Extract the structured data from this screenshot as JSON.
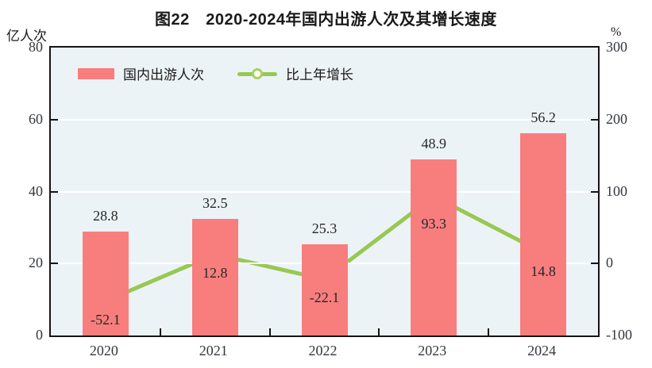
{
  "title": "图22　2020-2024年国内出游人次及其增长速度",
  "left_axis_unit": "亿人次",
  "right_axis_unit": "%",
  "legend": {
    "bar_label": "国内出游人次",
    "line_label": "比上年增长"
  },
  "chart_data": {
    "type": "bar",
    "subtype": "bar+line dual axis",
    "title": "图22　2020-2024年国内出游人次及其增长速度",
    "categories": [
      "2020",
      "2021",
      "2022",
      "2023",
      "2024"
    ],
    "series": [
      {
        "name": "国内出游人次",
        "type": "bar",
        "axis": "left",
        "values": [
          28.8,
          32.5,
          25.3,
          48.9,
          56.2
        ],
        "labels": [
          "28.8",
          "32.5",
          "25.3",
          "48.9",
          "56.2"
        ]
      },
      {
        "name": "比上年增长",
        "type": "line",
        "axis": "right",
        "values": [
          -52.1,
          12.8,
          -22.1,
          93.3,
          14.8
        ],
        "labels": [
          "-52.1",
          "12.8",
          "-22.1",
          "93.3",
          "14.8"
        ]
      }
    ],
    "left_axis": {
      "label": "亿人次",
      "min": 0,
      "max": 80,
      "ticks": [
        0,
        20,
        40,
        60,
        80
      ]
    },
    "right_axis": {
      "label": "%",
      "min": -100,
      "max": 300,
      "ticks": [
        -100,
        0,
        100,
        200,
        300
      ]
    },
    "gridlines_at_left_values": [
      20,
      40,
      60
    ],
    "legend_position": "top-left inside plot",
    "grid": true,
    "colors": {
      "bar": "#F87E7E",
      "line": "#97C853",
      "marker_fill": "#FDFFF4",
      "marker_stroke": "#A9D164",
      "plot_bg": "#ECF3F7",
      "gridline": "#FFFFFF",
      "axis": "#151515",
      "text": "#262626"
    }
  }
}
